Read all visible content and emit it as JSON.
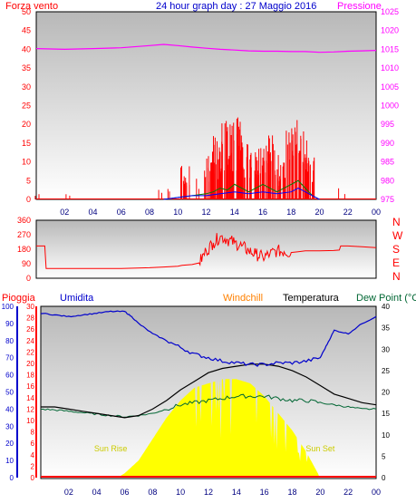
{
  "colors": {
    "wind": "#ff0000",
    "pressure": "#ff00ff",
    "gust": "#0000ff",
    "wind_avg": "#008000",
    "humidity": "#0000cc",
    "rain": "#ff0000",
    "windchill": "#ff8000",
    "temperature": "#000000",
    "dewpoint": "#006633",
    "solar": "#ffff00",
    "title": "#0000cc"
  },
  "chart_data": [
    {
      "type": "line",
      "title": "24 hour graph day : 27 Maggio 2016",
      "left_axis_label": "Forza vento",
      "right_axis_label": "Pressione",
      "x_ticks": [
        "02",
        "04",
        "06",
        "08",
        "10",
        "12",
        "14",
        "16",
        "18",
        "20",
        "22",
        "00"
      ],
      "y_left_ticks": [
        0,
        5,
        10,
        15,
        20,
        25,
        30,
        35,
        40,
        45,
        50
      ],
      "y_left_lim": [
        0,
        50
      ],
      "y_right_ticks": [
        975,
        980,
        985,
        990,
        995,
        1000,
        1005,
        1010,
        1015,
        1020,
        1025
      ],
      "y_right_lim": [
        975,
        1025
      ],
      "x_lim": [
        0,
        24
      ],
      "pressure": {
        "x": [
          0,
          2,
          4,
          6,
          8,
          9,
          10,
          11,
          12,
          13,
          14,
          15,
          16,
          17,
          18,
          19,
          20,
          21,
          22,
          23,
          24
        ],
        "y": [
          1015.2,
          1015.0,
          1015.2,
          1015.4,
          1016.0,
          1016.3,
          1016.0,
          1015.6,
          1015.3,
          1015.0,
          1014.8,
          1014.6,
          1014.5,
          1014.5,
          1014.4,
          1014.4,
          1014.2,
          1014.3,
          1014.5,
          1014.6,
          1014.7
        ]
      },
      "wind_gust_peaks": {
        "x": [
          0.2,
          2.4,
          8.8,
          9.3,
          10.5,
          11.5,
          12.2,
          12.8,
          13.3,
          13.8,
          14.2,
          14.6,
          15.2,
          15.8,
          16.5,
          17.2,
          17.8,
          18.4,
          18.9,
          19.3,
          19.6,
          21.7
        ],
        "y": [
          2,
          1.5,
          3,
          6,
          9,
          6,
          13,
          17,
          23,
          21,
          22,
          14,
          18,
          14,
          18,
          12,
          19,
          22,
          20,
          13,
          6,
          3
        ]
      },
      "wind_avg": {
        "x": [
          9,
          10,
          11,
          12,
          12.5,
          13,
          13.5,
          14,
          14.5,
          15,
          15.5,
          16,
          16.5,
          17,
          17.5,
          18,
          18.5,
          19,
          19.5,
          20
        ],
        "y": [
          0,
          0.5,
          1,
          1.5,
          2,
          3,
          2.5,
          4,
          3,
          2,
          3,
          4,
          3,
          2,
          3,
          4,
          5,
          3,
          1,
          0
        ]
      },
      "wind_speed": {
        "x": [
          9,
          10,
          11,
          12,
          13,
          14,
          15,
          16,
          17,
          18,
          18.5,
          19,
          19.5,
          20
        ],
        "y": [
          0,
          0.5,
          1,
          1,
          1.5,
          2,
          1.5,
          2,
          1.5,
          2,
          3,
          2,
          1,
          0
        ]
      }
    },
    {
      "type": "line",
      "left_axis_label": "",
      "right_axis_labels": [
        "N",
        "W",
        "S",
        "E",
        "N"
      ],
      "y_left_ticks": [
        0,
        90,
        180,
        270,
        360
      ],
      "y_left_lim": [
        0,
        360
      ],
      "x_lim": [
        0,
        24
      ],
      "wind_direction": {
        "x": [
          0,
          0.6,
          0.7,
          2,
          4,
          6,
          8,
          9,
          10,
          10.3,
          11,
          11.5,
          12,
          12.5,
          13,
          13.5,
          14,
          14.5,
          15,
          15.5,
          16,
          16.5,
          17,
          17.5,
          18,
          18.5,
          19,
          20,
          21,
          21.4,
          21.5,
          22,
          23,
          24
        ],
        "y": [
          200,
          200,
          60,
          60,
          60,
          60,
          65,
          70,
          75,
          80,
          85,
          95,
          170,
          220,
          260,
          240,
          220,
          200,
          170,
          150,
          130,
          150,
          170,
          165,
          160,
          165,
          170,
          170,
          172,
          175,
          200,
          200,
          195,
          190
        ]
      }
    },
    {
      "type": "line",
      "labels": {
        "rain": "Pioggia",
        "humidity": "Umidita",
        "windchill": "Windchill",
        "temperature": "Temperatura",
        "dewpoint": "Dew Point (°C",
        "sunrise": "Sun Rise",
        "sunset": "Sun Set"
      },
      "x_ticks": [
        "02",
        "04",
        "06",
        "08",
        "10",
        "12",
        "14",
        "16",
        "18",
        "20",
        "22",
        "00"
      ],
      "x_lim": [
        0,
        24
      ],
      "humidity_ticks": [
        0,
        10,
        20,
        30,
        40,
        50,
        60,
        70,
        80,
        90,
        100
      ],
      "rain_ticks": [
        0,
        2,
        4,
        6,
        8,
        10,
        12,
        14,
        16,
        18,
        20,
        22,
        24,
        26,
        28,
        30
      ],
      "temp_ticks": [
        0,
        5,
        10,
        15,
        20,
        25,
        30,
        35,
        40
      ],
      "temp_lim": [
        0,
        40
      ],
      "humidity_lim": [
        0,
        100
      ],
      "sunrise_hour": 5.0,
      "sunset_hour": 20.0,
      "temperature": {
        "x": [
          0,
          1,
          2,
          3,
          4,
          5,
          6,
          7,
          8,
          9,
          10,
          11,
          12,
          13,
          14,
          15,
          16,
          17,
          18,
          19,
          20,
          21,
          22,
          23,
          24
        ],
        "y": [
          16.5,
          16.5,
          16.0,
          15.5,
          15.0,
          14.5,
          14.0,
          14.5,
          16.0,
          18.0,
          20.5,
          22.5,
          24.5,
          25.5,
          26.0,
          26.5,
          26.5,
          26.0,
          25.0,
          23.5,
          21.5,
          19.5,
          18.5,
          17.5,
          17.0
        ]
      },
      "dewpoint": {
        "x": [
          0,
          1,
          2,
          3,
          4,
          5,
          6,
          7,
          8,
          9,
          10,
          11,
          12,
          13,
          14,
          15,
          16,
          17,
          18,
          19,
          20,
          21,
          22,
          23,
          24
        ],
        "y": [
          16.0,
          15.8,
          15.5,
          15.2,
          14.8,
          14.5,
          14.2,
          14.5,
          15.0,
          16.0,
          17.0,
          17.5,
          18.0,
          18.5,
          19.0,
          19.0,
          19.0,
          18.5,
          18.0,
          18.0,
          17.5,
          17.0,
          16.5,
          16.0,
          16.0
        ]
      },
      "humidity": {
        "x": [
          0,
          1,
          2,
          3,
          4,
          5,
          6,
          6.5,
          7,
          8,
          9,
          10,
          11,
          12,
          13,
          14,
          15,
          16,
          17,
          18,
          19,
          20,
          20.5,
          21,
          22,
          23,
          24
        ],
        "y": [
          96,
          95,
          94,
          95,
          96,
          97,
          97,
          94,
          90,
          84,
          80,
          76,
          72,
          70,
          68,
          67,
          66,
          66,
          67,
          67,
          68,
          70,
          78,
          86,
          84,
          90,
          94
        ]
      },
      "solar": {
        "x": [
          0,
          5.5,
          6,
          7,
          8,
          9,
          10,
          11,
          12,
          13,
          14,
          15,
          16,
          17,
          18,
          19,
          19.5,
          20,
          24
        ],
        "y": [
          0,
          0,
          1,
          4,
          9,
          14,
          18,
          21,
          22,
          23,
          23,
          22,
          19,
          15,
          11,
          6,
          3,
          0,
          0
        ]
      },
      "rain": {
        "x": [
          0,
          24
        ],
        "y": [
          0,
          0
        ]
      }
    }
  ]
}
